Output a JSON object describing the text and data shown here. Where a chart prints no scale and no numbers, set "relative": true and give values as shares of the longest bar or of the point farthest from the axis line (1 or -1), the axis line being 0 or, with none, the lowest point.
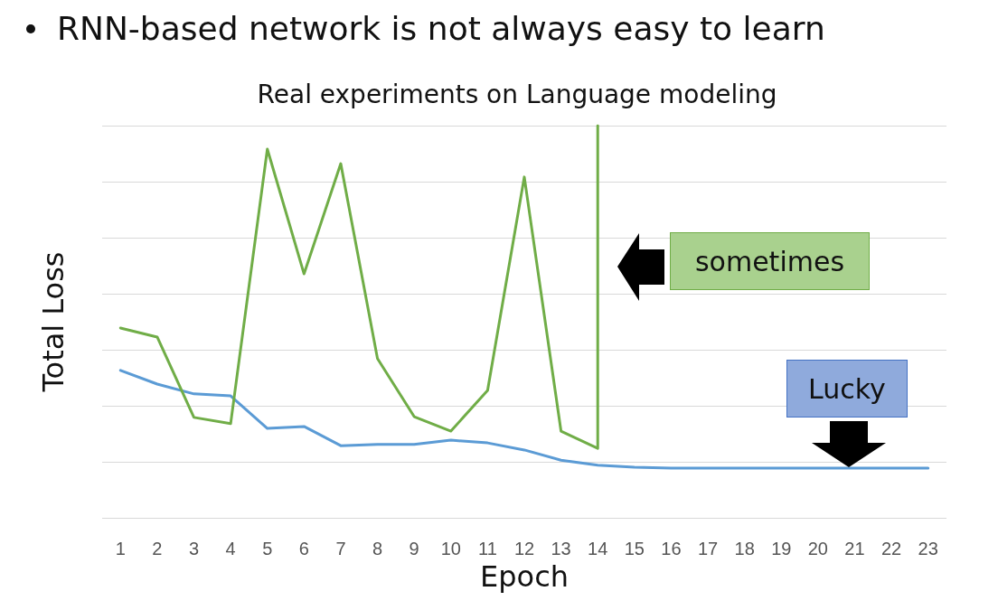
{
  "chart_data": {
    "type": "line",
    "title": "RNN-based network is not always easy to learn",
    "subtitle": "Real experiments on Language modeling",
    "xlabel": "Epoch",
    "ylabel": "Total Loss",
    "relative": true,
    "x": [
      1,
      2,
      3,
      4,
      5,
      6,
      7,
      8,
      9,
      10,
      11,
      12,
      13,
      14,
      15,
      16,
      17,
      18,
      19,
      20,
      21,
      22,
      23
    ],
    "xlim": [
      0.5,
      23.5
    ],
    "xticks": [
      1,
      2,
      3,
      4,
      5,
      6,
      7,
      8,
      9,
      10,
      11,
      12,
      13,
      14,
      15,
      16,
      17,
      18,
      19,
      20,
      21,
      22,
      23
    ],
    "series": [
      {
        "color": "#5b9bd5",
        "values": [
          0.376,
          0.341,
          0.316,
          0.311,
          0.228,
          0.233,
          0.184,
          0.187,
          0.187,
          0.198,
          0.191,
          0.173,
          0.147,
          0.134,
          0.129,
          0.127,
          0.127,
          0.127,
          0.127,
          0.127,
          0.127,
          0.127,
          0.127
        ]
      },
      {
        "color": "#70ad47",
        "x": [
          1,
          2,
          3,
          4,
          5,
          6,
          7,
          8,
          9,
          10,
          11,
          12,
          13,
          14,
          14
        ],
        "values": [
          0.484,
          0.461,
          0.256,
          0.24,
          0.94,
          0.622,
          0.903,
          0.406,
          0.258,
          0.221,
          0.325,
          0.869,
          0.221,
          0.177,
          1.0
        ]
      }
    ],
    "annotations": [
      "sometimes",
      "Lucky"
    ],
    "grid": "y",
    "marker": "none",
    "line_style": "solid"
  }
}
